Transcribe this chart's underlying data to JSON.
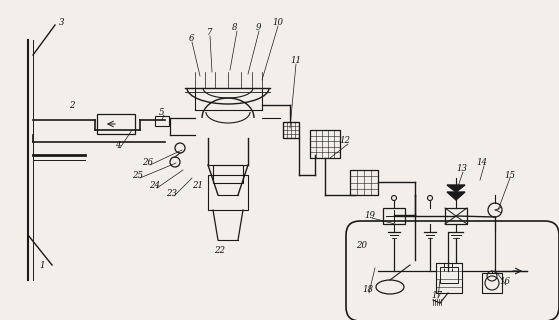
{
  "bg_color": "#f2efea",
  "line_color": "#1a1a1a",
  "label_color": "#111111",
  "fig_w": 5.59,
  "fig_h": 3.2,
  "dpi": 100
}
